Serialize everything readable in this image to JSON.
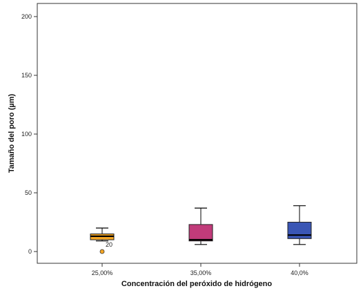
{
  "chart_data": {
    "type": "boxplot",
    "xlabel": "Concentración del peróxido de hidrógeno",
    "ylabel": "Tamaño del poro (µm)",
    "ylim": [
      -10,
      205
    ],
    "yticks": [
      "0",
      "50",
      "100",
      "150",
      "200"
    ],
    "grid": false,
    "categories": [
      "25,00%",
      "35,00%",
      "40,0%"
    ],
    "boxes": [
      {
        "category": "25,00%",
        "min": 9,
        "q1": 10,
        "median": 13,
        "q3": 15,
        "max": 20,
        "color": "#F5A623",
        "outliers": [
          {
            "value": 0,
            "label": "20"
          }
        ]
      },
      {
        "category": "35,00%",
        "min": 6,
        "q1": 9,
        "median": 10,
        "q3": 23,
        "max": 37,
        "color": "#C13B7A",
        "outliers": []
      },
      {
        "category": "40,0%",
        "min": 6,
        "q1": 11,
        "median": 14,
        "q3": 25,
        "max": 39,
        "color": "#3A56B5",
        "outliers": []
      }
    ]
  }
}
